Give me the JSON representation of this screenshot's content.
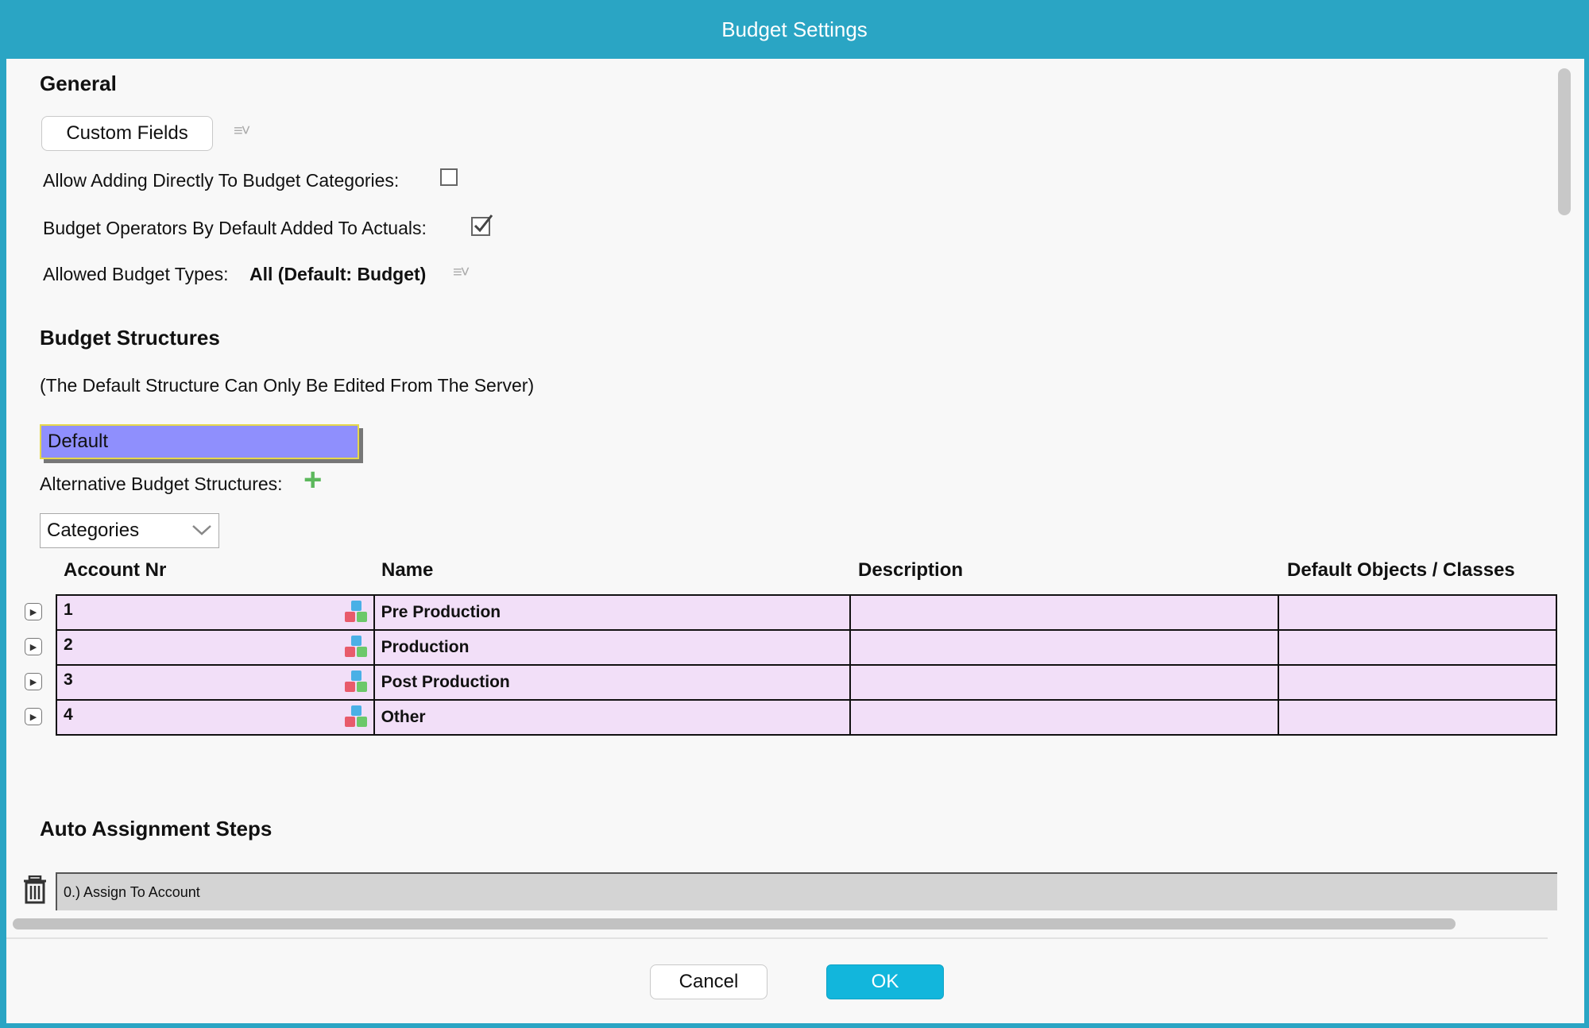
{
  "window": {
    "title": "Budget Settings"
  },
  "general": {
    "heading": "General",
    "custom_fields_label": "Custom Fields",
    "allow_adding_label": "Allow Adding Directly To Budget Categories:",
    "allow_adding_checked": false,
    "operators_label": "Budget Operators By Default Added To Actuals:",
    "operators_checked": true,
    "allowed_types_label": "Allowed Budget Types:",
    "allowed_types_value": "All (Default: Budget)"
  },
  "structures": {
    "heading": "Budget Structures",
    "note": "(The Default Structure Can Only Be Edited From The Server)",
    "default_value": "Default",
    "alternative_label": "Alternative Budget Structures:",
    "select_value": "Categories",
    "columns": [
      "Account Nr",
      "Name",
      "Description",
      "Default Objects / Classes"
    ],
    "rows": [
      {
        "account": "1",
        "name": "Pre Production",
        "description": "",
        "defaults": ""
      },
      {
        "account": "2",
        "name": "Production",
        "description": "",
        "defaults": ""
      },
      {
        "account": "3",
        "name": "Post Production",
        "description": "",
        "defaults": ""
      },
      {
        "account": "4",
        "name": "Other",
        "description": "",
        "defaults": ""
      }
    ]
  },
  "auto_assignment": {
    "heading": "Auto Assignment Steps",
    "steps": [
      "0.) Assign To Account"
    ]
  },
  "footer": {
    "cancel_label": "Cancel",
    "ok_label": "OK"
  },
  "colors": {
    "accent": "#2aa5c4",
    "ok_button": "#12b6dc",
    "row_bg": "#f2dff8",
    "default_box": "#8f8ffd"
  },
  "icons": {
    "menu": "menu-dropdown-icon",
    "plus": "plus-icon",
    "expand": "expand-arrow-icon",
    "cube": "cubes-icon",
    "trash": "trash-icon",
    "chevron": "chevron-down-icon"
  }
}
